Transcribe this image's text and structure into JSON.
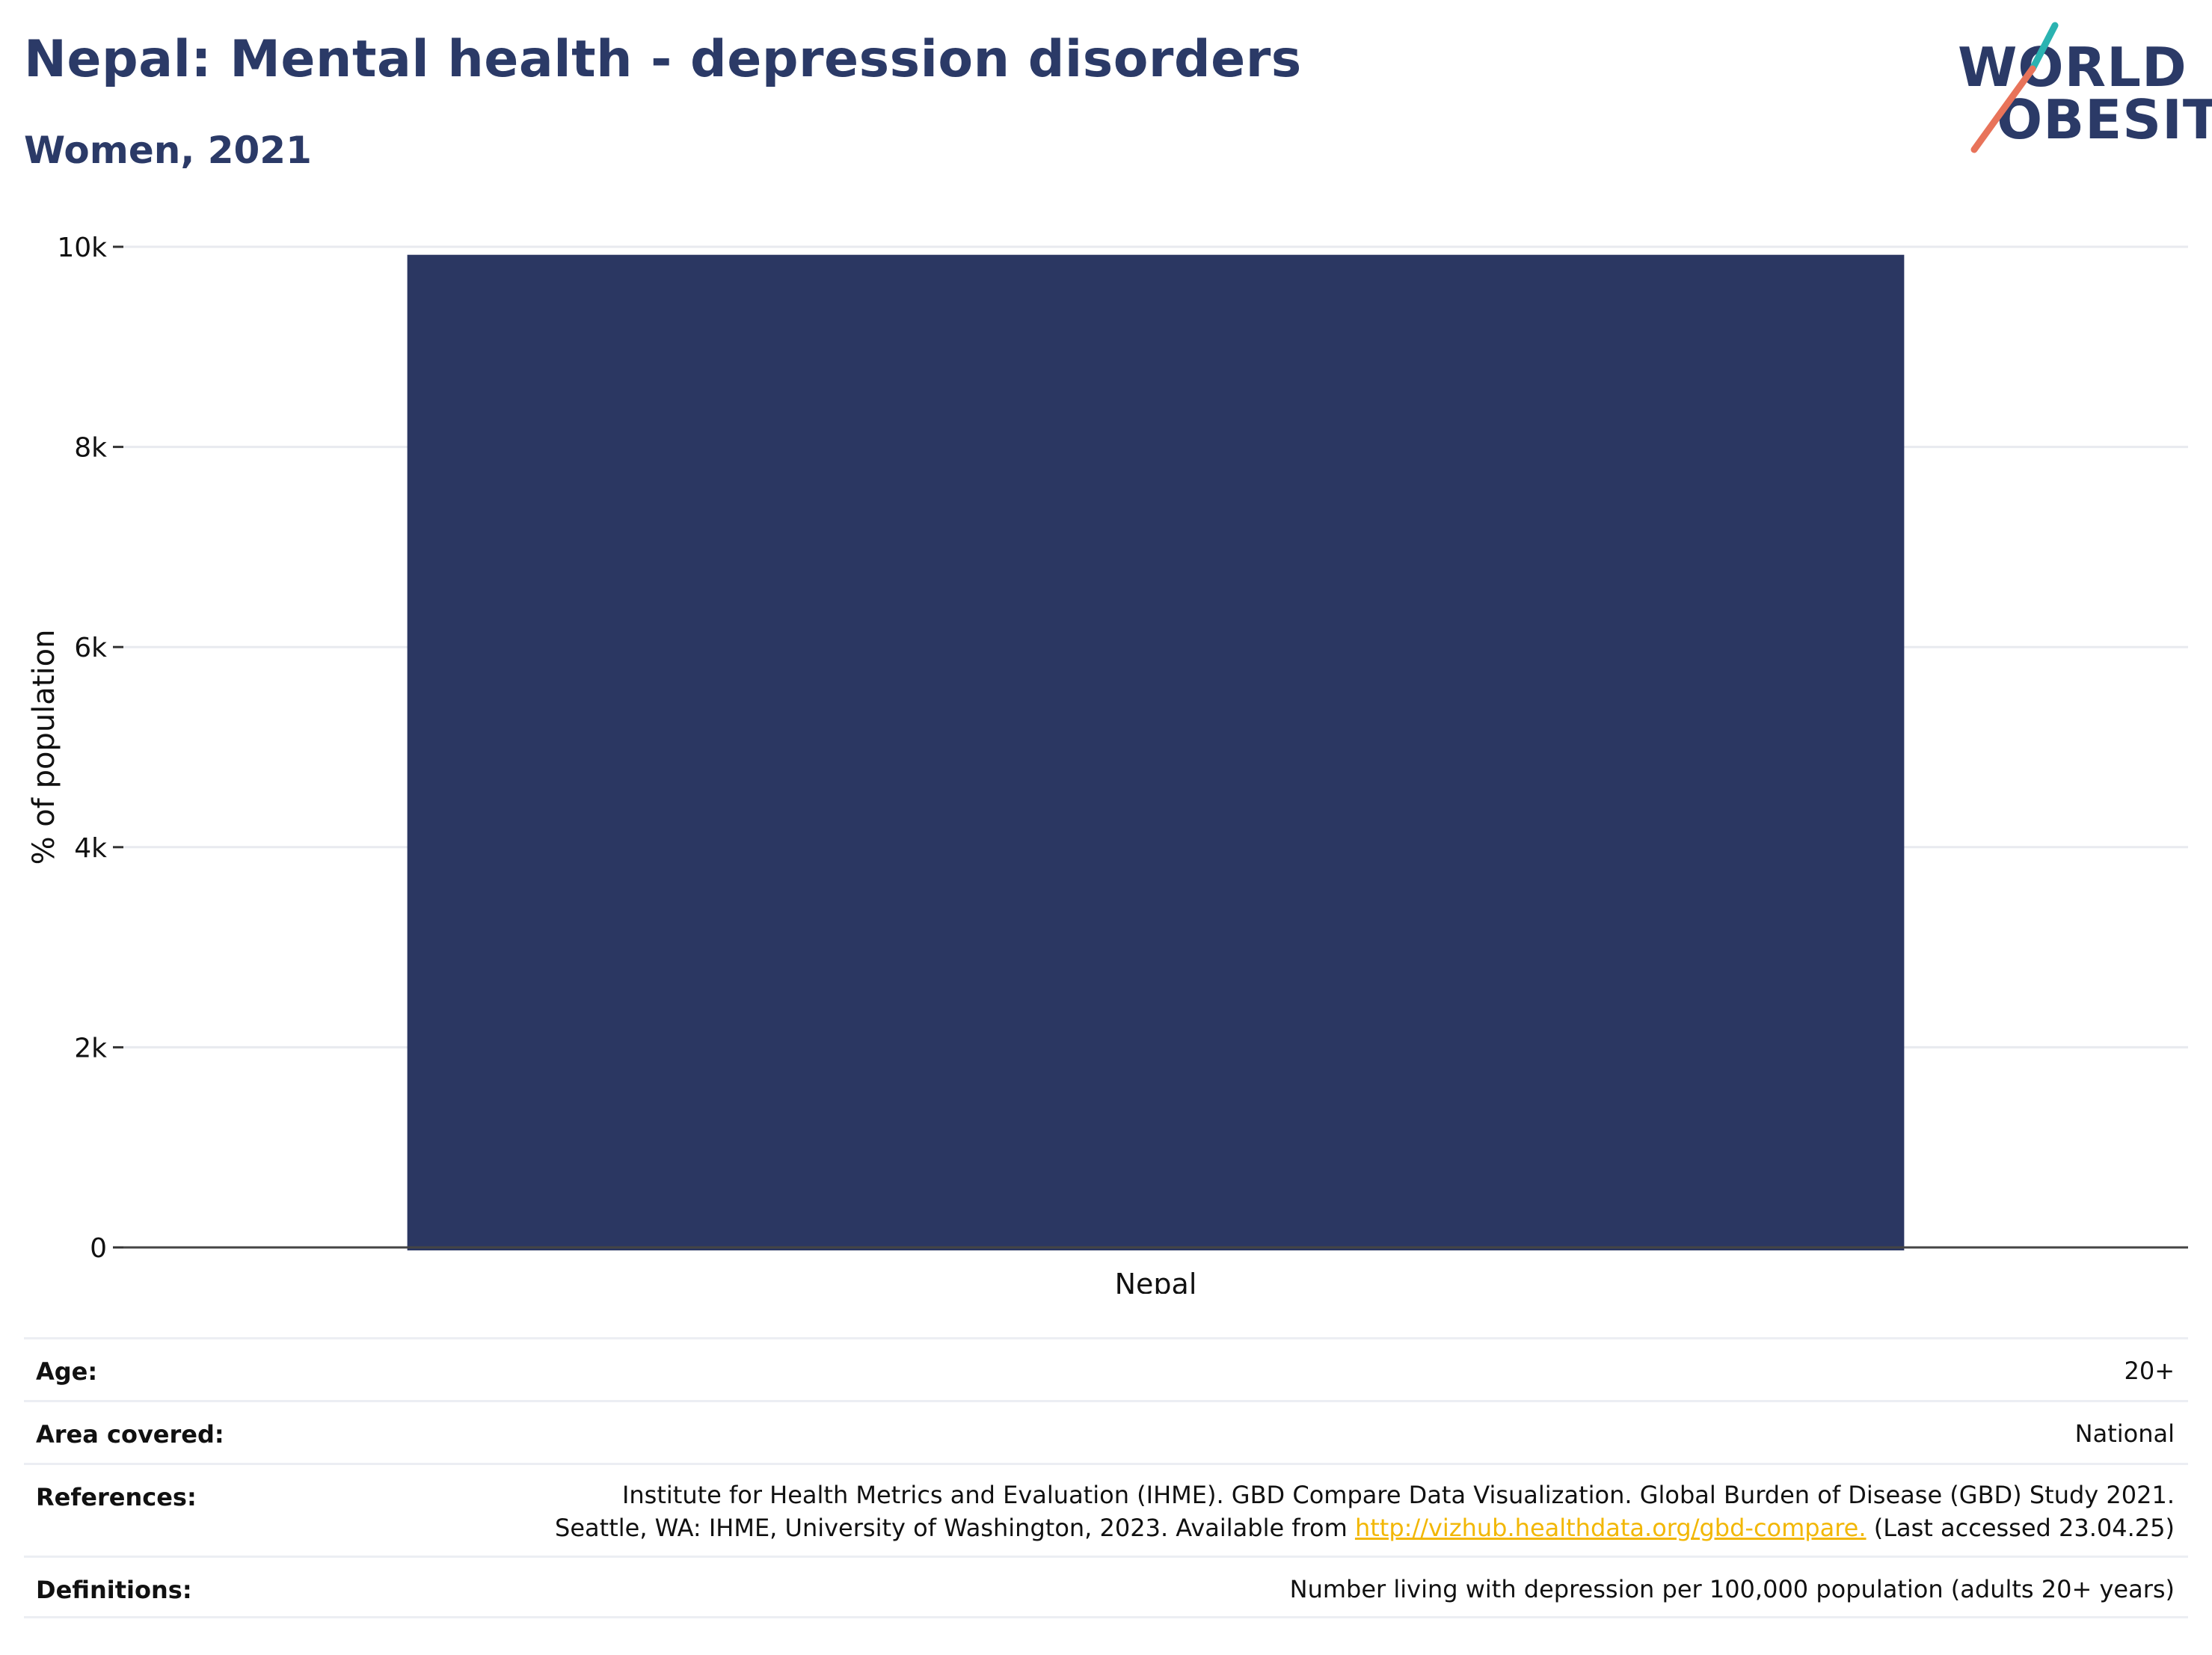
{
  "header": {
    "title": "Nepal: Mental health - depression disorders",
    "subtitle": "Women, 2021"
  },
  "logo": {
    "line1": "WORLD",
    "line2": "OBESITY",
    "accent_colors": [
      "#2bb3b1",
      "#e8735a"
    ]
  },
  "chart_data": {
    "type": "bar",
    "categories": [
      "Nepal"
    ],
    "values": [
      9920
    ],
    "ylabel": "% of population",
    "xlabel": "",
    "ylim": [
      0,
      10000
    ],
    "yticks": [
      0,
      2000,
      4000,
      6000,
      8000,
      10000
    ],
    "ytick_labels": [
      "0",
      "2k",
      "4k",
      "6k",
      "8k",
      "10k"
    ],
    "bar_color": "#2b3762",
    "grid": true
  },
  "meta": {
    "age_label": "Age:",
    "age_value": "20+",
    "area_label": "Area covered:",
    "area_value": "National",
    "references_label": "References:",
    "references_line1": "Institute for Health Metrics and Evaluation (IHME). GBD Compare Data Visualization. Global Burden of Disease (GBD) Study 2021.",
    "references_line2_pre": "Seattle, WA: IHME, University of Washington, 2023. Available from ",
    "references_link": "http://vizhub.healthdata.org/gbd-compare.",
    "references_line2_post": " (Last accessed 23.04.25)",
    "definitions_label": "Definitions:",
    "definitions_value": "Number living with depression per 100,000 population (adults 20+ years)"
  }
}
